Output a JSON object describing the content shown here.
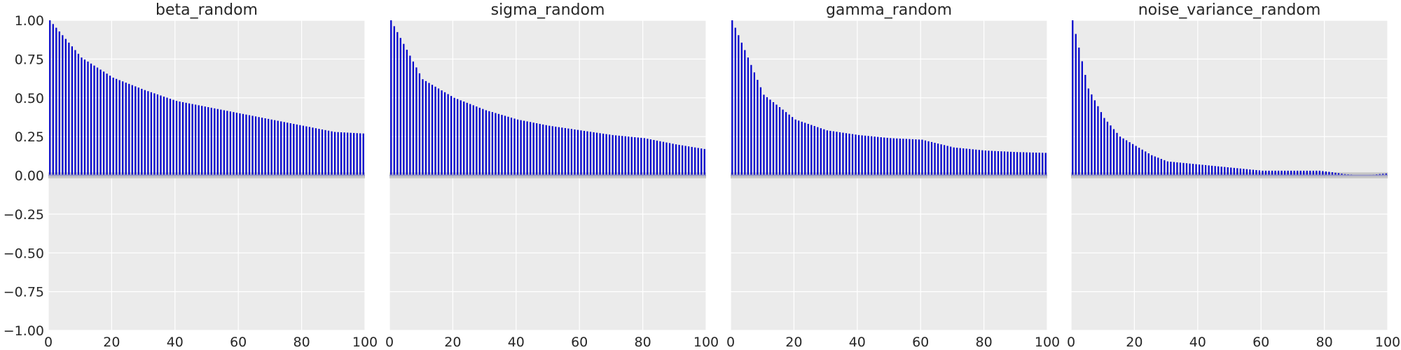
{
  "chart_data": [
    {
      "type": "bar",
      "title": "beta_random",
      "xlabel": "",
      "ylabel": "",
      "xlim": [
        0,
        100
      ],
      "ylim": [
        -1,
        1
      ],
      "x_ticks": [
        "0",
        "20",
        "40",
        "60",
        "80",
        "100"
      ],
      "y_ticks": [
        "1.00",
        "0.75",
        "0.50",
        "0.25",
        "0.00",
        "−0.25",
        "−0.50",
        "−0.75",
        "−1.00"
      ],
      "grid": true,
      "lags": [
        0,
        10,
        20,
        30,
        40,
        50,
        60,
        70,
        80,
        90,
        99
      ],
      "values": [
        1.0,
        0.76,
        0.63,
        0.55,
        0.48,
        0.44,
        0.4,
        0.36,
        0.32,
        0.28,
        0.27
      ],
      "confidence_band": [
        -0.01,
        0.01
      ]
    },
    {
      "type": "bar",
      "title": "sigma_random",
      "xlabel": "",
      "ylabel": "",
      "xlim": [
        0,
        100
      ],
      "ylim": [
        -1,
        1
      ],
      "x_ticks": [
        "0",
        "20",
        "40",
        "60",
        "80",
        "100"
      ],
      "grid": true,
      "lags": [
        0,
        10,
        20,
        30,
        40,
        50,
        60,
        70,
        80,
        90,
        99
      ],
      "values": [
        1.0,
        0.62,
        0.5,
        0.42,
        0.36,
        0.32,
        0.29,
        0.26,
        0.24,
        0.2,
        0.17
      ],
      "confidence_band": [
        -0.01,
        0.01
      ]
    },
    {
      "type": "bar",
      "title": "gamma_random",
      "xlabel": "",
      "ylabel": "",
      "xlim": [
        0,
        100
      ],
      "ylim": [
        -1,
        1
      ],
      "x_ticks": [
        "0",
        "20",
        "40",
        "60",
        "80",
        "100"
      ],
      "grid": true,
      "lags": [
        0,
        10,
        20,
        30,
        40,
        50,
        60,
        70,
        80,
        90,
        99
      ],
      "values": [
        1.0,
        0.52,
        0.36,
        0.29,
        0.26,
        0.24,
        0.23,
        0.18,
        0.16,
        0.15,
        0.145
      ],
      "confidence_band": [
        -0.01,
        0.01
      ]
    },
    {
      "type": "bar",
      "title": "noise_variance_random",
      "xlabel": "",
      "ylabel": "",
      "xlim": [
        0,
        100
      ],
      "ylim": [
        -1,
        1
      ],
      "x_ticks": [
        "0",
        "20",
        "40",
        "60",
        "80",
        "100"
      ],
      "grid": true,
      "lags": [
        0,
        5,
        10,
        15,
        20,
        25,
        30,
        40,
        50,
        60,
        70,
        78,
        82,
        86,
        90,
        95,
        99
      ],
      "values": [
        1.0,
        0.56,
        0.37,
        0.25,
        0.19,
        0.13,
        0.09,
        0.07,
        0.05,
        0.03,
        0.03,
        0.03,
        0.02,
        0.008,
        0.003,
        0.005,
        0.012
      ],
      "confidence_band": [
        -0.01,
        0.01
      ]
    }
  ],
  "style": {
    "axes_bg": "#ebebeb",
    "grid_color": "#ffffff",
    "bar_color": "#0000cc",
    "band_color": "#c6c6c6",
    "zero_line_color": "#9a9ac8",
    "text_color": "#262626"
  }
}
